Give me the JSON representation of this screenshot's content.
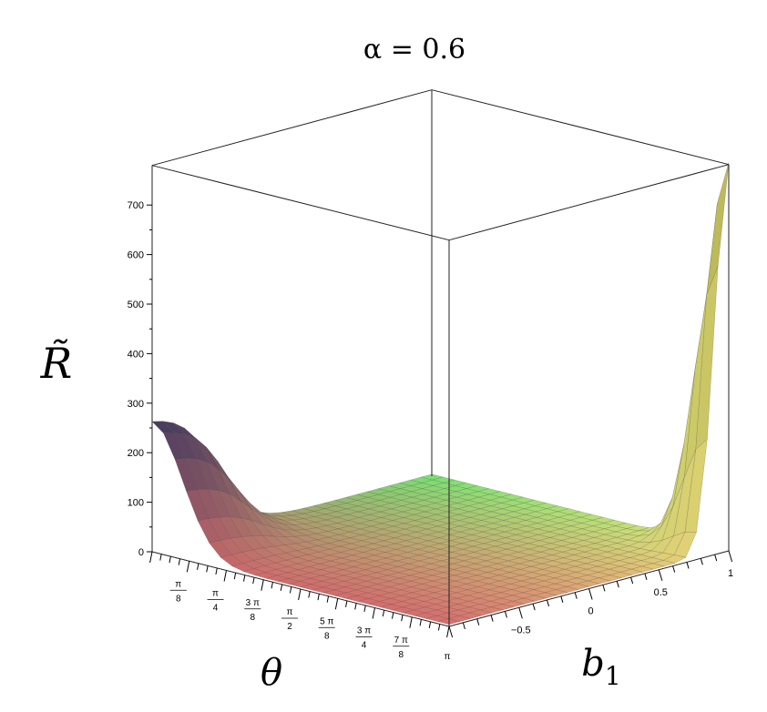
{
  "chart_data": {
    "type": "surface",
    "title": "α = 0.6",
    "xlabel": "θ",
    "ylabel": "b1",
    "zlabel": "R̃",
    "x_range": [
      0,
      3.14159
    ],
    "y_range": [
      -1,
      1
    ],
    "z_range": [
      0,
      780
    ],
    "z_ticks": [
      "0",
      "100",
      "200",
      "300",
      "400",
      "500",
      "600",
      "700"
    ],
    "x_ticks": [
      {
        "num": "π",
        "den": "8"
      },
      {
        "num": "π",
        "den": "4"
      },
      {
        "num": "3 π",
        "den": "8"
      },
      {
        "num": "π",
        "den": "2"
      },
      {
        "num": "5 π",
        "den": "8"
      },
      {
        "num": "3 π",
        "den": "4"
      },
      {
        "num": "7 π",
        "den": "8"
      },
      {
        "num": "π",
        "den": ""
      }
    ],
    "y_ticks": [
      "−0.5",
      "0",
      "0.5",
      "1"
    ],
    "grid_samples": {
      "theta_0_edge_b1_minus1_to_1": [
        265,
        255,
        180,
        80,
        30,
        10,
        5,
        3,
        2,
        1,
        1
      ],
      "theta_pi_edge_b1_minus1_to_1": [
        1,
        2,
        3,
        5,
        8,
        12,
        20,
        40,
        120,
        350,
        780
      ],
      "interior_approx": 5
    },
    "colormap": [
      "#d97b7b",
      "#e9e07a",
      "#7fe07a",
      "#3c3a5a"
    ]
  }
}
